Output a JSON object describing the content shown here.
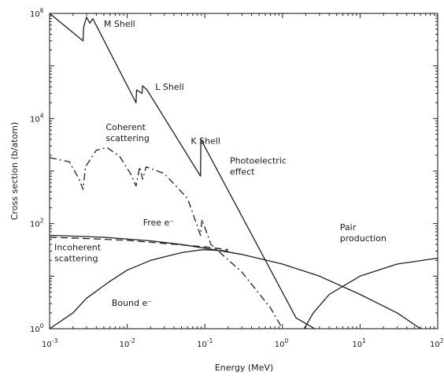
{
  "chart_data": {
    "type": "line",
    "title": "",
    "xlabel": "Energy (MeV)",
    "ylabel": "Cross section (b/atom)",
    "xscale": "log",
    "yscale": "log",
    "xlim": [
      0.001,
      100
    ],
    "ylim": [
      1,
      1000000
    ],
    "grid": false,
    "x_ticks": [
      {
        "value": 0.001,
        "base": "10",
        "exp": "-3"
      },
      {
        "value": 0.01,
        "base": "10",
        "exp": "-2"
      },
      {
        "value": 0.1,
        "base": "10",
        "exp": "-1"
      },
      {
        "value": 1,
        "base": "10",
        "exp": "0"
      },
      {
        "value": 10,
        "base": "10",
        "exp": "1"
      },
      {
        "value": 100,
        "base": "10",
        "exp": "2"
      }
    ],
    "y_ticks": [
      {
        "value": 1,
        "base": "10",
        "exp": "0"
      },
      {
        "value": 100,
        "base": "10",
        "exp": "2"
      },
      {
        "value": 10000,
        "base": "10",
        "exp": "4"
      },
      {
        "value": 1000000,
        "base": "10",
        "exp": "6"
      }
    ],
    "series": [
      {
        "name": "Photoelectric effect",
        "style": "solid",
        "points": [
          [
            0.001,
            1000000
          ],
          [
            0.0027,
            300000
          ],
          [
            0.00275,
            550000
          ],
          [
            0.003,
            850000
          ],
          [
            0.0033,
            650000
          ],
          [
            0.0036,
            800000
          ],
          [
            0.0038,
            680000
          ],
          [
            0.013,
            20000
          ],
          [
            0.0132,
            35000
          ],
          [
            0.0155,
            30000
          ],
          [
            0.0158,
            42000
          ],
          [
            0.018,
            35000
          ],
          [
            0.088,
            800
          ],
          [
            0.089,
            4000
          ],
          [
            1.5,
            1.6
          ],
          [
            2.6,
            1
          ]
        ]
      },
      {
        "name": "Coherent scattering",
        "style": "dash-dot",
        "points": [
          [
            0.001,
            1800
          ],
          [
            0.0018,
            1500
          ],
          [
            0.0024,
            700
          ],
          [
            0.0027,
            450
          ],
          [
            0.0029,
            1200
          ],
          [
            0.004,
            2500
          ],
          [
            0.0055,
            2800
          ],
          [
            0.008,
            1900
          ],
          [
            0.011,
            900
          ],
          [
            0.013,
            520
          ],
          [
            0.0145,
            1200
          ],
          [
            0.0158,
            700
          ],
          [
            0.0175,
            1200
          ],
          [
            0.03,
            900
          ],
          [
            0.06,
            300
          ],
          [
            0.088,
            60
          ],
          [
            0.092,
            120
          ],
          [
            0.12,
            40
          ],
          [
            0.3,
            12
          ],
          [
            0.7,
            2.5
          ],
          [
            1.0,
            1
          ]
        ]
      },
      {
        "name": "Free e⁻",
        "style": "dashed",
        "points": [
          [
            0.001,
            55
          ],
          [
            0.003,
            52
          ],
          [
            0.01,
            48
          ],
          [
            0.03,
            42
          ],
          [
            0.1,
            36
          ],
          [
            0.2,
            32
          ]
        ]
      },
      {
        "name": "Incoherent scattering",
        "style": "solid",
        "points": [
          [
            0.001,
            60
          ],
          [
            0.005,
            55
          ],
          [
            0.02,
            47
          ],
          [
            0.05,
            40
          ],
          [
            0.1,
            34
          ],
          [
            0.3,
            26
          ],
          [
            1,
            17
          ],
          [
            3,
            10
          ],
          [
            10,
            4.5
          ],
          [
            30,
            2
          ],
          [
            60,
            1
          ]
        ]
      },
      {
        "name": "Bound e⁻",
        "style": "solid",
        "points": [
          [
            0.001,
            1
          ],
          [
            0.002,
            2
          ],
          [
            0.003,
            3.8
          ],
          [
            0.006,
            8
          ],
          [
            0.01,
            13
          ],
          [
            0.02,
            20
          ],
          [
            0.05,
            28
          ],
          [
            0.08,
            31
          ],
          [
            0.1,
            32
          ],
          [
            0.2,
            30
          ]
        ]
      },
      {
        "name": "Pair production",
        "style": "solid",
        "points": [
          [
            1.9,
            1
          ],
          [
            2.5,
            2
          ],
          [
            4,
            4.5
          ],
          [
            10,
            10
          ],
          [
            30,
            17
          ],
          [
            100,
            22
          ]
        ]
      }
    ],
    "annotations": [
      {
        "id": "m-shell",
        "text": "M Shell",
        "x": 0.005,
        "y": 560000
      },
      {
        "id": "l-shell",
        "text": "L Shell",
        "x": 0.023,
        "y": 35000
      },
      {
        "id": "k-shell",
        "text": "K Shell",
        "x": 0.066,
        "y": 3300
      },
      {
        "id": "photoelectric",
        "lines": [
          "Photoelectric",
          "effect"
        ],
        "x": 0.21,
        "y": 1400
      },
      {
        "id": "coherent",
        "lines": [
          "Coherent",
          "scattering"
        ],
        "x": 0.0053,
        "y": 6000
      },
      {
        "id": "free-e",
        "text": "Free e⁻",
        "x": 0.016,
        "y": 92
      },
      {
        "id": "incoherent",
        "lines": [
          "Incoherent",
          "scattering"
        ],
        "x": 0.00115,
        "y": 31
      },
      {
        "id": "bound-e",
        "text": "Bound e⁻",
        "x": 0.0063,
        "y": 2.7
      },
      {
        "id": "pair",
        "lines": [
          "Pair",
          "production"
        ],
        "x": 5.5,
        "y": 75
      }
    ]
  }
}
